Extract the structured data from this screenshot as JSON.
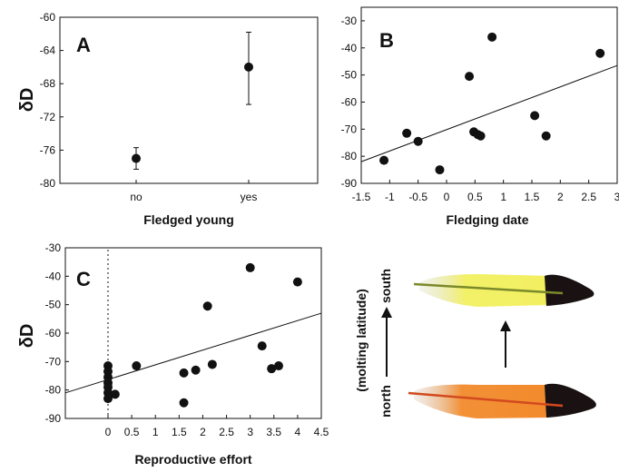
{
  "chart_data": [
    {
      "panel_label": "A",
      "type": "scatter",
      "xlabel": "Fledged young",
      "ylabel": "δD",
      "categories": [
        "no",
        "yes"
      ],
      "ylim": [
        -80,
        -60
      ],
      "yticks": [
        -60,
        -64,
        -68,
        -72,
        -76,
        -80
      ],
      "points": [
        {
          "category": "no",
          "y": -77.0,
          "err_low": -78.3,
          "err_high": -75.7
        },
        {
          "category": "yes",
          "y": -66.0,
          "err_low": -70.5,
          "err_high": -61.8
        }
      ]
    },
    {
      "panel_label": "B",
      "type": "scatter",
      "xlabel": "Fledging date",
      "xlim": [
        -1.5,
        3
      ],
      "ylim": [
        -90,
        -25
      ],
      "xticks": [
        "-1.5",
        "-1",
        "-0.5",
        "0",
        "0.5",
        "1",
        "1.5",
        "2",
        "2.5",
        "3"
      ],
      "yticks": [
        "-30",
        "-40",
        "-50",
        "-60",
        "-70",
        "-80",
        "-90"
      ],
      "points": [
        {
          "x": -1.1,
          "y": -81.5
        },
        {
          "x": -0.7,
          "y": -71.5
        },
        {
          "x": -0.5,
          "y": -74.5
        },
        {
          "x": -0.12,
          "y": -85
        },
        {
          "x": 0.4,
          "y": -50.5
        },
        {
          "x": 0.48,
          "y": -71
        },
        {
          "x": 0.55,
          "y": -72
        },
        {
          "x": 0.6,
          "y": -72.5
        },
        {
          "x": 0.8,
          "y": -36
        },
        {
          "x": 1.55,
          "y": -65
        },
        {
          "x": 1.75,
          "y": -72.5
        },
        {
          "x": 2.7,
          "y": -42
        }
      ],
      "trendline": {
        "x": [
          -1.5,
          3
        ],
        "y": [
          -82,
          -46.5
        ]
      }
    },
    {
      "panel_label": "C",
      "type": "scatter",
      "xlabel": "Reproductive effort",
      "ylabel": "δD",
      "xlim": [
        -0.9,
        4.5
      ],
      "ylim": [
        -90,
        -30
      ],
      "xticks": [
        "0",
        "0.5",
        "1",
        "1.5",
        "2",
        "2.5",
        "3",
        "3.5",
        "4",
        "4.5"
      ],
      "yticks": [
        "-30",
        "-40",
        "-50",
        "-60",
        "-70",
        "-80",
        "-90"
      ],
      "points": [
        {
          "x": 0,
          "y": -71.5
        },
        {
          "x": 0,
          "y": -73.5
        },
        {
          "x": 0,
          "y": -75.5
        },
        {
          "x": 0,
          "y": -77.5
        },
        {
          "x": 0,
          "y": -79
        },
        {
          "x": 0,
          "y": -81
        },
        {
          "x": 0,
          "y": -83
        },
        {
          "x": 0.15,
          "y": -81.5
        },
        {
          "x": 0.6,
          "y": -71.5
        },
        {
          "x": 1.6,
          "y": -74
        },
        {
          "x": 1.6,
          "y": -84.5
        },
        {
          "x": 1.85,
          "y": -73
        },
        {
          "x": 2.1,
          "y": -50.5
        },
        {
          "x": 2.2,
          "y": -71
        },
        {
          "x": 3.0,
          "y": -37
        },
        {
          "x": 3.25,
          "y": -64.5
        },
        {
          "x": 3.45,
          "y": -72.5
        },
        {
          "x": 3.6,
          "y": -71.5
        },
        {
          "x": 4.0,
          "y": -42
        }
      ],
      "trendline": {
        "x": [
          -0.9,
          4.5
        ],
        "y": [
          -81,
          -53
        ]
      },
      "reference_line_x": 0
    }
  ],
  "illustration": {
    "latitude_label": "(molting latitude)",
    "north_label": "north",
    "south_label": "south",
    "feathers": [
      {
        "position": "top",
        "band_color": "#f2f060",
        "shaft_color": "#7a8a2a",
        "tip_color": "#1a1212"
      },
      {
        "position": "bottom",
        "band_color": "#f28a2c",
        "shaft_color": "#d24a1e",
        "tip_color": "#1a1212"
      }
    ]
  }
}
